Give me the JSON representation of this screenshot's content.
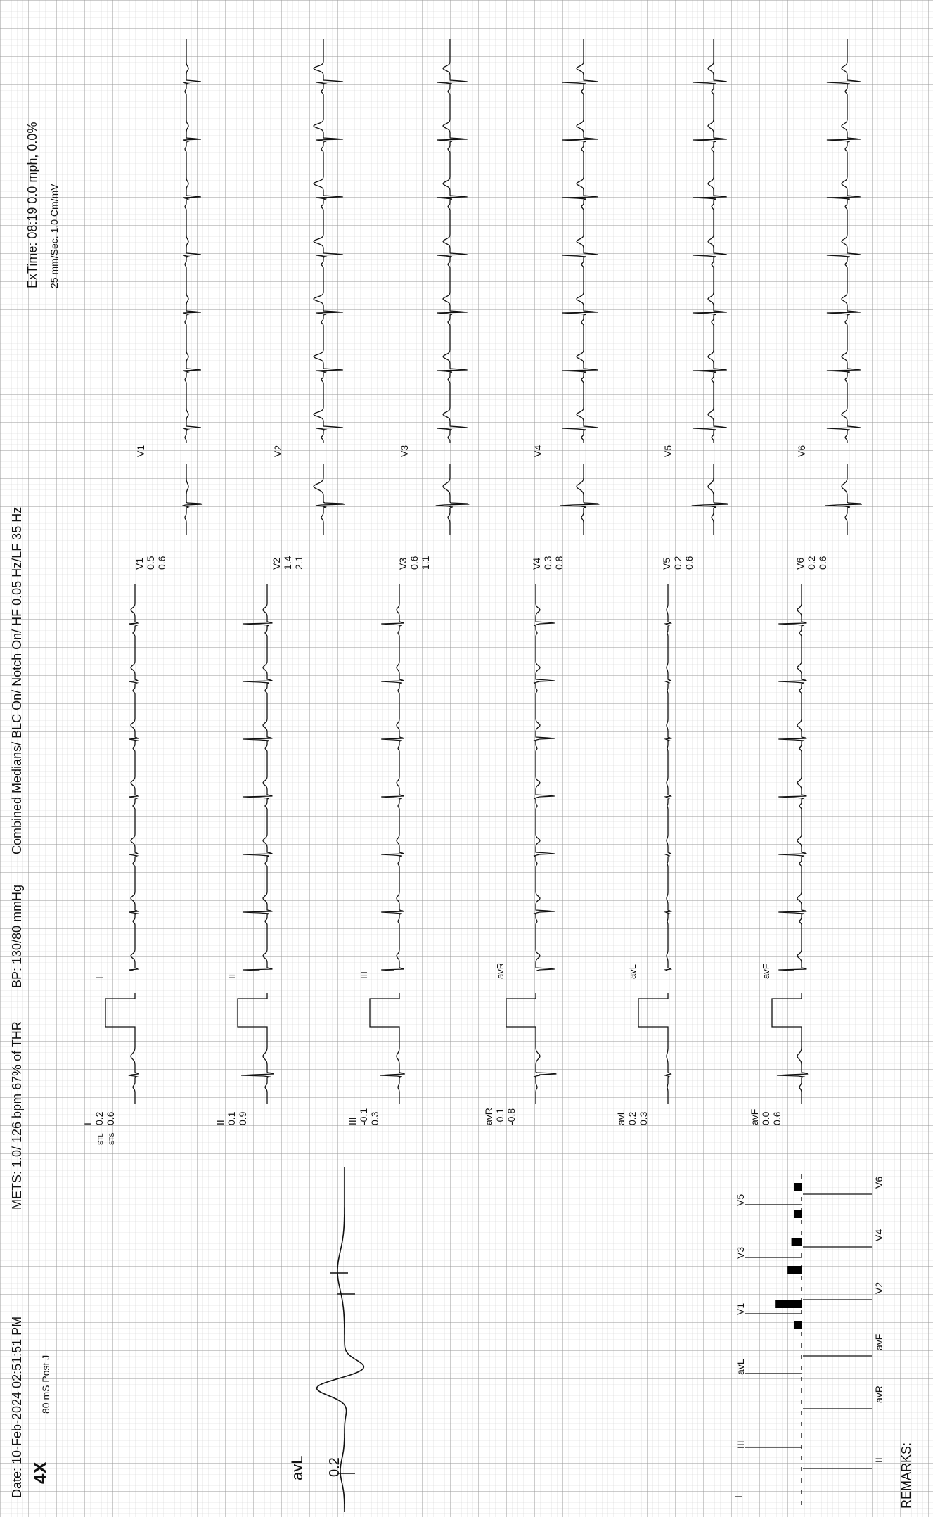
{
  "header": {
    "date": "Date: 10-Feb-2024 02:51:51 PM",
    "mets": "METS: 1.0/ 126 bpm 67% of THR",
    "bp": "BP: 130/80 mmHg",
    "filters": "Combined Medians/ BLC On/ Notch On/ HF 0.05 Hz/LF 35   Hz",
    "extime": "ExTime: 08:19   0.0 mph,   0.0%",
    "speed": "25 mm/Sec.  1.0 Cm/mV",
    "zoom": "4X",
    "post_j": "80 mS Post J"
  },
  "leads": [
    {
      "name": "I",
      "stl": "0.2",
      "sts": "0.6",
      "stl_label": "STL",
      "sts_label": "STS"
    },
    {
      "name": "II",
      "stl": "0.1",
      "sts": "0.9"
    },
    {
      "name": "III",
      "stl": "-0.1",
      "sts": "0.3"
    },
    {
      "name": "avR",
      "stl": "-0.1",
      "sts": "-0.8"
    },
    {
      "name": "avL",
      "stl": "0.2",
      "sts": "0.3"
    },
    {
      "name": "avF",
      "stl": "0.0",
      "sts": "0.6"
    },
    {
      "name": "V1",
      "stl": "0.5",
      "sts": "0.6"
    },
    {
      "name": "V2",
      "stl": "1.4",
      "sts": "2.1"
    },
    {
      "name": "V3",
      "stl": "0.6",
      "sts": "1.1"
    },
    {
      "name": "V4",
      "stl": "0.3",
      "sts": "0.8"
    },
    {
      "name": "V5",
      "stl": "0.2",
      "sts": "0.6"
    },
    {
      "name": "V6",
      "stl": "0.2",
      "sts": "0.6"
    }
  ],
  "zoom_panel": {
    "lead": "avL",
    "value": "0.2"
  },
  "bar_panel": {
    "top_labels": [
      "III",
      "avL",
      "V1",
      "V3",
      "V5"
    ],
    "bottom_labels": [
      "II",
      "avR",
      "avF",
      "V2",
      "V4",
      "V6"
    ],
    "first_label": "I"
  },
  "remarks_label": "REMARKS:"
}
